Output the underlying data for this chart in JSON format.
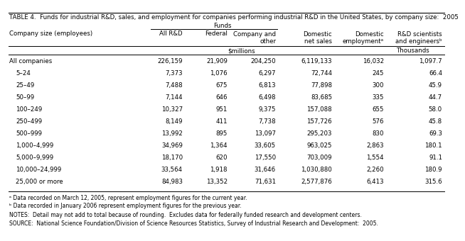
{
  "title": "TABLE 4.  Funds for industrial R&D, sales, and employment for companies performing industrial R&D in the United States, by company size:  2005",
  "rows": [
    [
      "All companies",
      "226,159",
      "21,909",
      "204,250",
      "6,119,133",
      "16,032",
      "1,097.7"
    ],
    [
      "5–24",
      "7,373",
      "1,076",
      "6,297",
      "72,744",
      "245",
      "66.4"
    ],
    [
      "25–49",
      "7,488",
      "675",
      "6,813",
      "77,898",
      "300",
      "45.9"
    ],
    [
      "50–99",
      "7,144",
      "646",
      "6,498",
      "83,685",
      "335",
      "44.7"
    ],
    [
      "100–249",
      "10,327",
      "951",
      "9,375",
      "157,088",
      "655",
      "58.0"
    ],
    [
      "250–499",
      "8,149",
      "411",
      "7,738",
      "157,726",
      "576",
      "45.8"
    ],
    [
      "500–999",
      "13,992",
      "895",
      "13,097",
      "295,203",
      "830",
      "69.3"
    ],
    [
      "1,000–4,999",
      "34,969",
      "1,364",
      "33,605",
      "963,025",
      "2,863",
      "180.1"
    ],
    [
      "5,000–9,999",
      "18,170",
      "620",
      "17,550",
      "703,009",
      "1,554",
      "91.1"
    ],
    [
      "10,000–24,999",
      "33,564",
      "1,918",
      "31,646",
      "1,030,880",
      "2,260",
      "180.9"
    ],
    [
      "25,000 or more",
      "84,983",
      "13,352",
      "71,631",
      "2,577,876",
      "6,413",
      "315.6"
    ]
  ],
  "footnote_a": "ᵃ Data recorded on March 12, 2005, represent employment figures for the current year.",
  "footnote_b": "ᵇ Data recorded in January 2006 represent employment figures for the previous year.",
  "notes": "NOTES:  Detail may not add to total because of rounding.  Excludes data for federally funded research and development centers.",
  "source": "SOURCE:  National Science Foundation/Division of Science Resources Statistics, Survey of Industrial Research and Development:  2005."
}
